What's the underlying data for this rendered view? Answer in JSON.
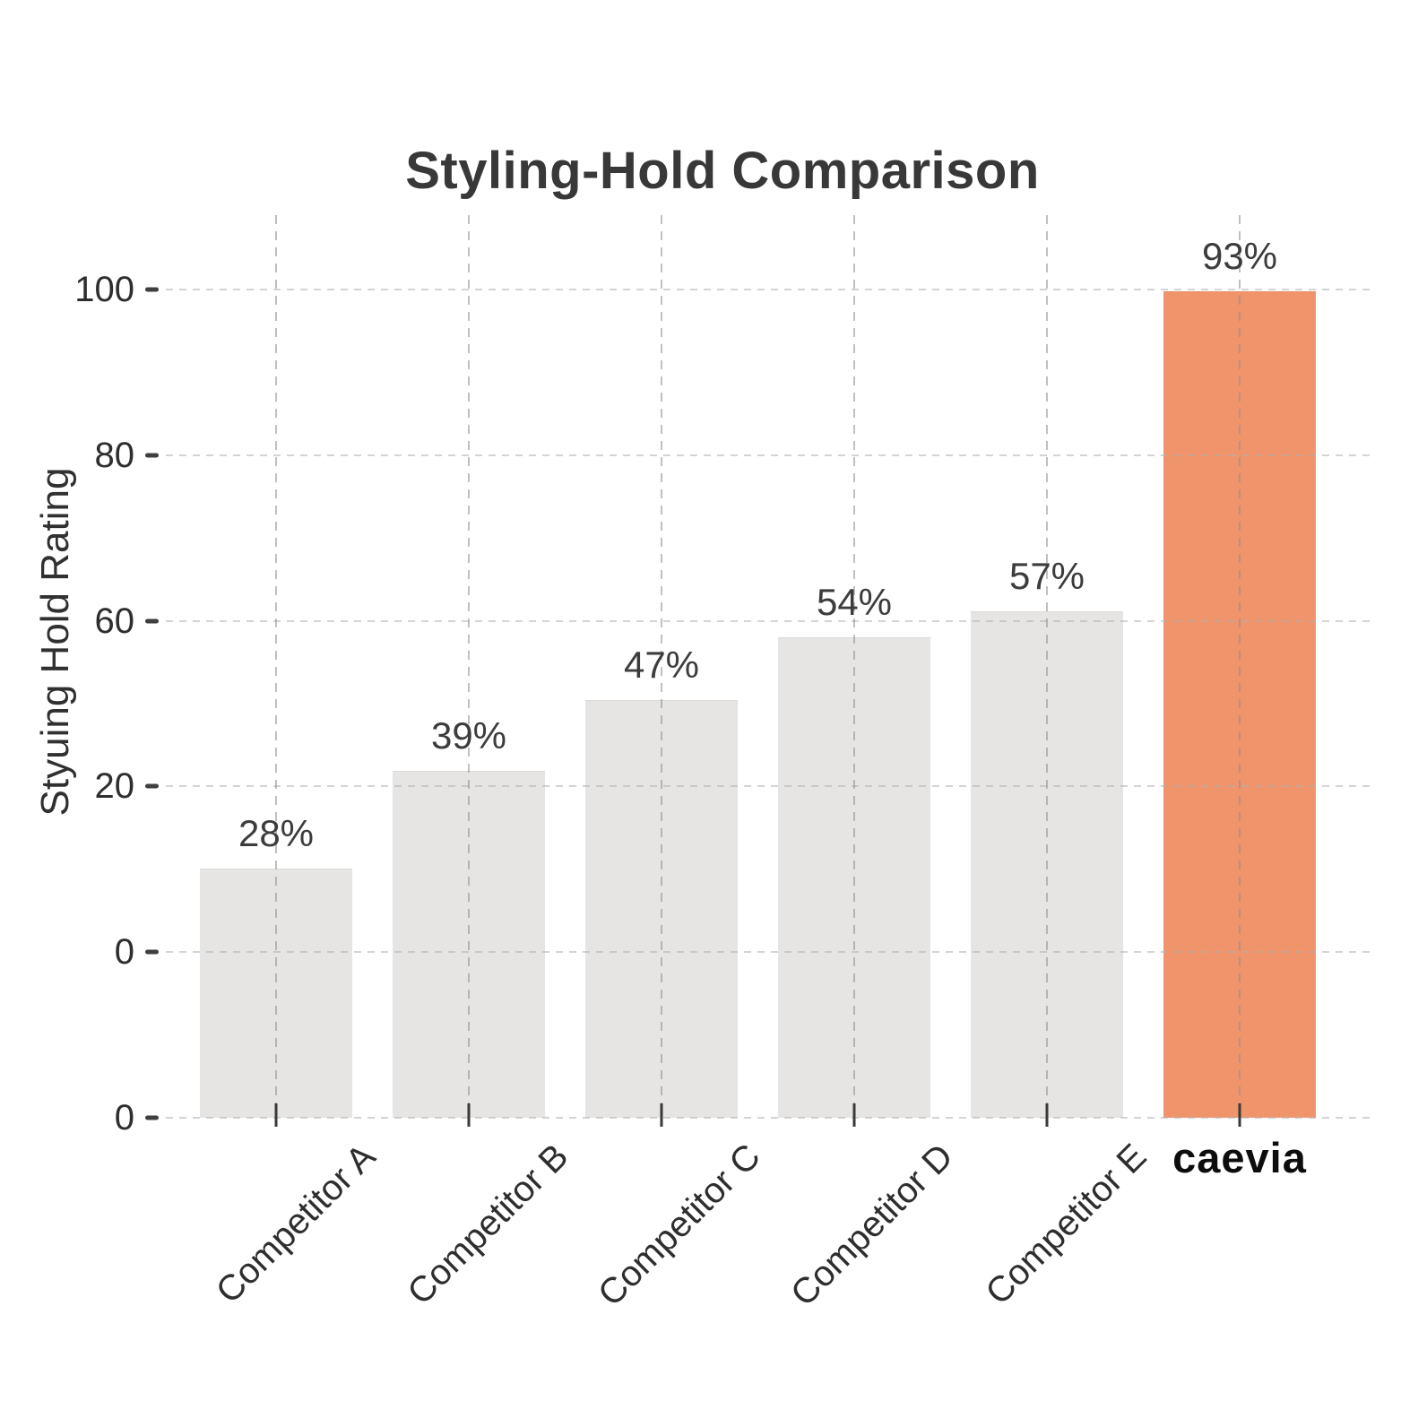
{
  "title": "Styling-Hold Comparison",
  "chart_data": {
    "type": "bar",
    "title": "Styling-Hold Comparison",
    "xlabel": "",
    "ylabel": "Styuing Hold Rating",
    "categories": [
      "Competitor A",
      "Competitor B",
      "Competitor C",
      "Competitor D",
      "Competitor E",
      "caevia"
    ],
    "values": [
      28,
      39,
      47,
      54,
      57,
      93
    ],
    "value_labels": [
      "28%",
      "39%",
      "47%",
      "54%",
      "57%",
      "93%"
    ],
    "ytick_labels": [
      "100",
      "80",
      "60",
      "20",
      "0",
      "0"
    ],
    "ylim": [
      0,
      105
    ],
    "grid": "dashed-both-axes",
    "legend": "none",
    "highlight_index": 5,
    "highlight_label": "caevia",
    "bar_color": "#e6e5e4",
    "highlight_color": "#f0946c",
    "text_color": "#383838",
    "grid_color": "#bdbdbd"
  }
}
